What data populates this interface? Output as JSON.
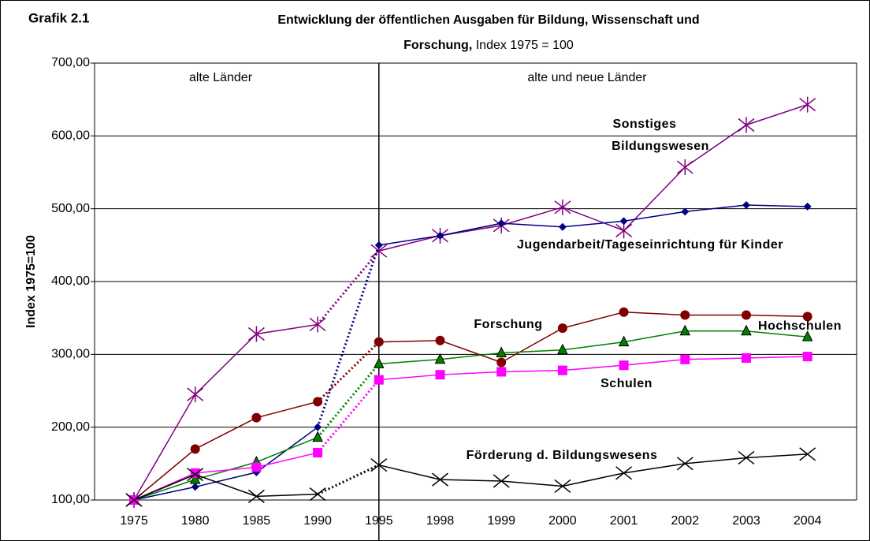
{
  "chart_data": {
    "type": "line",
    "label": "Grafik 2.1",
    "title": "Entwicklung der öffentlichen Ausgaben für Bildung, Wissenschaft und Forschung,",
    "subtitle": "Index 1975 = 100",
    "y_axis_label": "Index 1975=100",
    "regions": [
      "alte Länder",
      "alte und neue Länder"
    ],
    "divider": "1995",
    "categories": [
      "1975",
      "1980",
      "1985",
      "1990",
      "1995",
      "1998",
      "1999",
      "2000",
      "2001",
      "2002",
      "2003",
      "2004"
    ],
    "ylim": [
      100,
      700
    ],
    "yticks": [
      {
        "value": 100,
        "label": "100,00"
      },
      {
        "value": 200,
        "label": "200,00"
      },
      {
        "value": 300,
        "label": "300,00"
      },
      {
        "value": 400,
        "label": "400,00"
      },
      {
        "value": 500,
        "label": "500,00"
      },
      {
        "value": 600,
        "label": "600,00"
      },
      {
        "value": 700,
        "label": "700,00"
      }
    ],
    "grid": true,
    "series": [
      {
        "name": "Sonstiges Bildungswesen",
        "color": "#800080",
        "marker": "star",
        "values": [
          100,
          245,
          328,
          341,
          442,
          463,
          477,
          502,
          470,
          557,
          615,
          643
        ]
      },
      {
        "name": "Jugendarbeit/Tageseinrichtung für Kinder",
        "color": "#000080",
        "marker": "diamond",
        "values": [
          100,
          118,
          138,
          200,
          450,
          463,
          480,
          475,
          483,
          496,
          505,
          503
        ]
      },
      {
        "name": "Forschung",
        "color": "#800000",
        "marker": "circle",
        "values": [
          100,
          170,
          213,
          235,
          317,
          319,
          289,
          336,
          358,
          354,
          354,
          352
        ]
      },
      {
        "name": "Hochschulen",
        "color": "#008000",
        "marker": "triangle",
        "values": [
          100,
          128,
          152,
          186,
          287,
          293,
          302,
          306,
          317,
          332,
          332,
          324
        ]
      },
      {
        "name": "Schulen",
        "color": "#ff00ff",
        "marker": "square",
        "values": [
          100,
          137,
          145,
          165,
          265,
          272,
          276,
          278,
          285,
          293,
          295,
          297
        ]
      },
      {
        "name": "Förderung d. Bildungswesens",
        "color": "#000000",
        "marker": "x",
        "values": [
          100,
          135,
          105,
          108,
          148,
          128,
          126,
          119,
          137,
          150,
          158,
          163
        ]
      }
    ]
  }
}
